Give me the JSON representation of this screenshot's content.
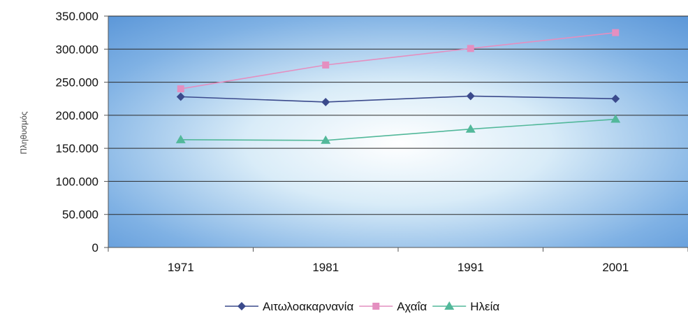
{
  "chart_data": {
    "type": "line",
    "categories": [
      "1971",
      "1981",
      "1991",
      "2001"
    ],
    "ylabel": "Πληθυσμός",
    "ylim": [
      0,
      350000
    ],
    "yticks": [
      "0",
      "50.000",
      "100.000",
      "150.000",
      "200.000",
      "250.000",
      "300.000",
      "350.000"
    ],
    "grid": true,
    "legend": "bottom",
    "series": [
      {
        "name": "Αιτωλοακαρνανία",
        "values": [
          228000,
          220000,
          229000,
          225000
        ],
        "color": "#3b4a8c",
        "marker": "diamond"
      },
      {
        "name": "Αχαΐα",
        "values": [
          240000,
          276000,
          301000,
          325000
        ],
        "color": "#e48fc0",
        "marker": "square"
      },
      {
        "name": "Ηλεία",
        "values": [
          163000,
          162000,
          179000,
          194000
        ],
        "color": "#52b89a",
        "marker": "triangle"
      }
    ]
  }
}
